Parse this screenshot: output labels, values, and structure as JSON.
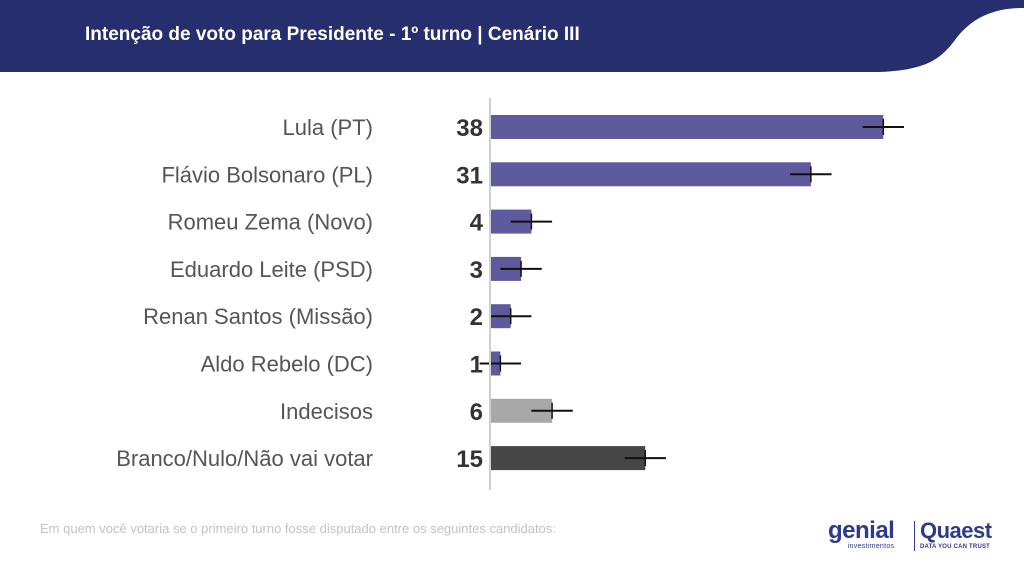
{
  "header": {
    "title": "Intenção de voto para Presidente - 1º turno | Cenário III",
    "bg_color": "#262e6e"
  },
  "chart_data": {
    "type": "bar",
    "orientation": "horizontal",
    "categories": [
      "Lula (PT)",
      "Flávio Bolsonaro (PL)",
      "Romeu Zema (Novo)",
      "Eduardo Leite (PSD)",
      "Renan Santos (Missão)",
      "Aldo Rebelo (DC)",
      "Indecisos",
      "Branco/Nulo/Não vai votar"
    ],
    "values": [
      38,
      31,
      4,
      3,
      2,
      1,
      6,
      15
    ],
    "value_labels": [
      "38",
      "31",
      "4",
      "3",
      "2",
      "1",
      "6",
      "15"
    ],
    "error_margin": 2,
    "bar_colors": [
      "#5f5a9e",
      "#5f5a9e",
      "#5f5a9e",
      "#5f5a9e",
      "#5f5a9e",
      "#5f5a9e",
      "#a8a8a8",
      "#474747"
    ],
    "xlim": [
      0,
      50
    ],
    "grid": false,
    "legend": "none"
  },
  "footnote": "Em quem você votaria se o primeiro turno fosse disputado entre os seguintes candidatos:",
  "logos": {
    "genial": "genial",
    "genial_sub": "investimentos",
    "quaest": "Quaest",
    "quaest_sub": "DATA YOU CAN TRUST"
  }
}
